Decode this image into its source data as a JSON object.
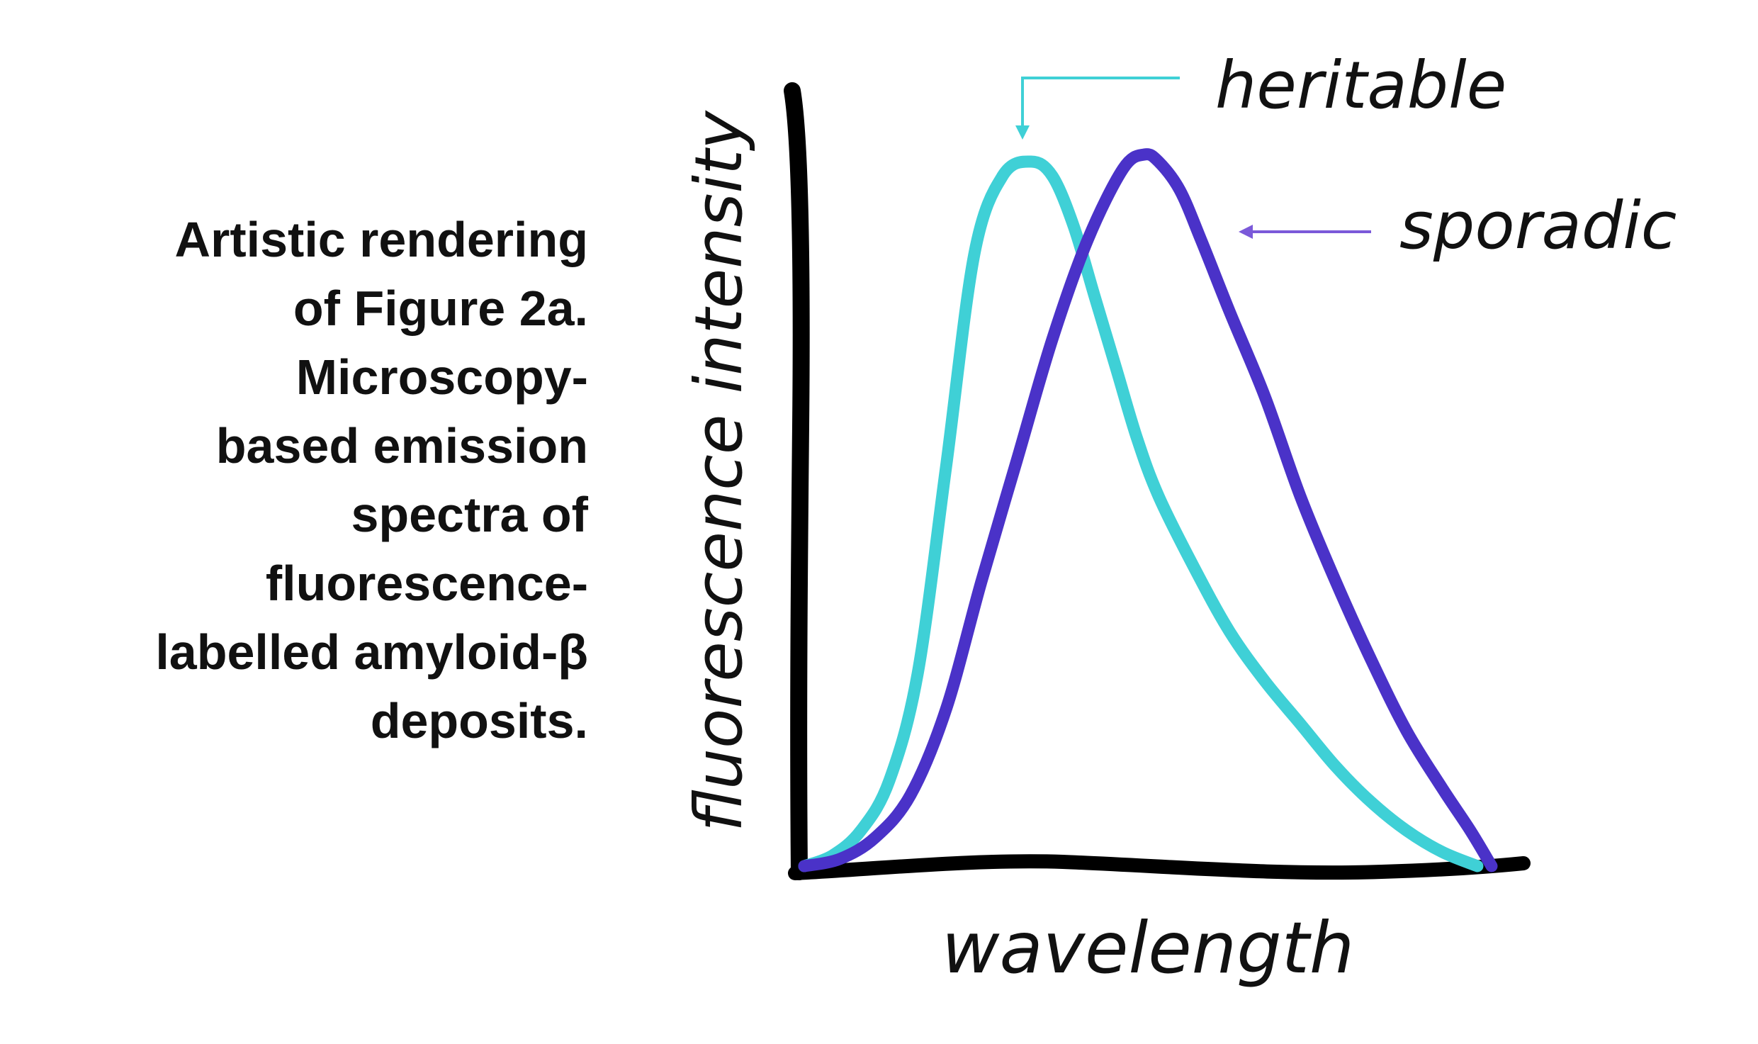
{
  "caption": {
    "lines": [
      "Artistic rendering",
      "of Figure 2a.",
      "Microscopy-",
      "based emission",
      "spectra of",
      "fluorescence-",
      "labelled amyloid-β",
      "deposits."
    ]
  },
  "chart_data": {
    "type": "line",
    "title": "",
    "xlabel": "wavelength",
    "ylabel": "fluorescence  intensity",
    "xlim": [
      0,
      100
    ],
    "ylim": [
      0,
      100
    ],
    "grid": false,
    "axis_ticks": false,
    "series": [
      {
        "name": "heritable",
        "color": "#3fd0d6",
        "x": [
          0,
          4,
          8,
          12,
          16,
          20,
          24,
          28,
          32,
          35,
          38,
          41,
          44,
          47,
          50,
          55,
          60,
          65,
          70,
          75,
          80,
          85,
          90,
          95
        ],
        "y": [
          0,
          1.5,
          5,
          12,
          27,
          56,
          86,
          97,
          99,
          97,
          90,
          80,
          70,
          60,
          52,
          42,
          33,
          26,
          20,
          14,
          9,
          5,
          2,
          0
        ]
      },
      {
        "name": "sporadic",
        "color": "#4a32c8",
        "x": [
          0,
          5,
          10,
          15,
          20,
          25,
          30,
          35,
          40,
          45,
          48,
          50,
          53,
          56,
          60,
          65,
          70,
          75,
          80,
          85,
          90,
          94,
          97
        ],
        "y": [
          0,
          1,
          4,
          10,
          22,
          40,
          57,
          74,
          88,
          98,
          100,
          99,
          95,
          88,
          78,
          66,
          52,
          40,
          29,
          19,
          11,
          5,
          0
        ]
      }
    ],
    "annotations": [
      {
        "text": "heritable",
        "series": "heritable",
        "color": "#3fd0d6"
      },
      {
        "text": "sporadic",
        "series": "sporadic",
        "color": "#7b59d9"
      }
    ]
  }
}
